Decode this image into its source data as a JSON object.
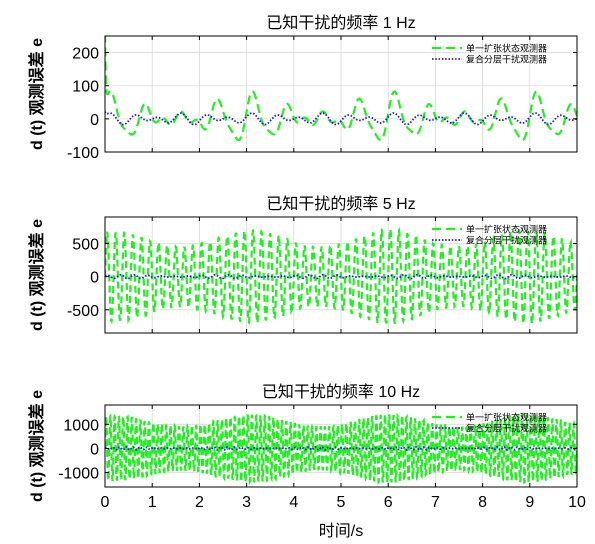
{
  "figure": {
    "xlabel": "时间/s",
    "colors": {
      "series1": "#22ee22",
      "series2": "#1a1ad6",
      "grid": "#d9d9d9",
      "axis": "#000000"
    }
  },
  "chart_data": [
    {
      "type": "line",
      "title": "已知干扰的频率 1 Hz",
      "ylabel": "d (t) 观测误差 e",
      "xlim": [
        0,
        10
      ],
      "ylim": [
        -100,
        250
      ],
      "yticks": [
        -100,
        0,
        100,
        200
      ],
      "xticks": [
        0,
        1,
        2,
        3,
        4,
        5,
        6,
        7,
        8,
        9,
        10
      ],
      "grid": true,
      "legend": "top-right",
      "series": [
        {
          "name": "单一扩张状态观测器",
          "style": "dashed",
          "color": "#22ee22",
          "initial_peak": 230,
          "amplitude": 75,
          "fundamental_hz": 1,
          "beat_period_s": 3
        },
        {
          "name": "复合分层干扰观测器",
          "style": "dotted",
          "color": "#1a1ad6",
          "initial_peak": 15,
          "amplitude": 18,
          "fundamental_hz": 2
        }
      ]
    },
    {
      "type": "line",
      "title": "已知干扰的频率 5 Hz",
      "ylabel": "d (t) 观测误差 e",
      "xlim": [
        0,
        10
      ],
      "ylim": [
        -850,
        900
      ],
      "yticks": [
        -500,
        0,
        500
      ],
      "xticks": [
        0,
        1,
        2,
        3,
        4,
        5,
        6,
        7,
        8,
        9,
        10
      ],
      "grid": true,
      "legend": "top-right",
      "series": [
        {
          "name": "单一扩张状态观测器",
          "style": "dashed",
          "color": "#22ee22",
          "amplitude": 700,
          "fundamental_hz": 5
        },
        {
          "name": "复合分层干扰观测器",
          "style": "dotted",
          "color": "#1a1ad6",
          "amplitude": 30,
          "fundamental_hz": 5
        }
      ]
    },
    {
      "type": "line",
      "title": "已知干扰的频率 10 Hz",
      "ylabel": "d (t) 观测误差 e",
      "xlim": [
        0,
        10
      ],
      "ylim": [
        -1600,
        1800
      ],
      "yticks": [
        -1000,
        0,
        1000
      ],
      "xticks": [
        0,
        1,
        2,
        3,
        4,
        5,
        6,
        7,
        8,
        9,
        10
      ],
      "grid": true,
      "legend": "top-right",
      "series": [
        {
          "name": "单一扩张状态观测器",
          "style": "dashed",
          "color": "#22ee22",
          "amplitude": 1400,
          "fundamental_hz": 10
        },
        {
          "name": "复合分层干扰观测器",
          "style": "dotted",
          "color": "#1a1ad6",
          "amplitude": 60,
          "fundamental_hz": 10
        }
      ]
    }
  ]
}
